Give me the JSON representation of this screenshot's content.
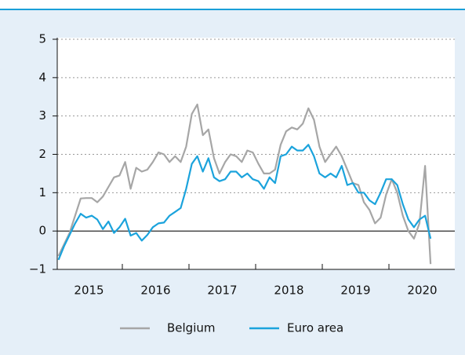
{
  "chart_data": {
    "type": "line",
    "x": [
      2015.042,
      2015.125,
      2015.208,
      2015.292,
      2015.375,
      2015.458,
      2015.542,
      2015.625,
      2015.708,
      2015.792,
      2015.875,
      2015.958,
      2016.042,
      2016.125,
      2016.208,
      2016.292,
      2016.375,
      2016.458,
      2016.542,
      2016.625,
      2016.708,
      2016.792,
      2016.875,
      2016.958,
      2017.042,
      2017.125,
      2017.208,
      2017.292,
      2017.375,
      2017.458,
      2017.542,
      2017.625,
      2017.708,
      2017.792,
      2017.875,
      2017.958,
      2018.042,
      2018.125,
      2018.208,
      2018.292,
      2018.375,
      2018.458,
      2018.542,
      2018.625,
      2018.708,
      2018.792,
      2018.875,
      2018.958,
      2019.042,
      2019.125,
      2019.208,
      2019.292,
      2019.375,
      2019.458,
      2019.542,
      2019.625,
      2019.708,
      2019.792,
      2019.875,
      2019.958,
      2020.042,
      2020.125,
      2020.208,
      2020.292,
      2020.375,
      2020.458,
      2020.542,
      2020.625
    ],
    "series": [
      {
        "name": "Belgium",
        "color": "#a6a6a6",
        "values": [
          -0.65,
          -0.35,
          -0.05,
          0.4,
          0.85,
          0.86,
          0.86,
          0.75,
          0.9,
          1.15,
          1.4,
          1.45,
          1.8,
          1.1,
          1.65,
          1.55,
          1.6,
          1.8,
          2.05,
          2.0,
          1.8,
          1.95,
          1.8,
          2.2,
          3.05,
          3.3,
          2.5,
          2.65,
          1.9,
          1.5,
          1.8,
          2.0,
          1.95,
          1.8,
          2.1,
          2.05,
          1.75,
          1.5,
          1.5,
          1.6,
          2.25,
          2.6,
          2.7,
          2.65,
          2.8,
          3.2,
          2.9,
          2.2,
          1.8,
          2.0,
          2.2,
          1.95,
          1.6,
          1.25,
          1.2,
          0.75,
          0.55,
          0.2,
          0.35,
          0.95,
          1.35,
          1.0,
          0.4,
          0.0,
          -0.2,
          0.2,
          1.7,
          -0.86
        ]
      },
      {
        "name": "Euro area",
        "color": "#1ba3dc",
        "values": [
          -0.75,
          -0.4,
          -0.1,
          0.2,
          0.45,
          0.35,
          0.4,
          0.3,
          0.05,
          0.25,
          -0.05,
          0.1,
          0.32,
          -0.12,
          -0.05,
          -0.25,
          -0.1,
          0.1,
          0.2,
          0.22,
          0.4,
          0.5,
          0.6,
          1.1,
          1.75,
          1.95,
          1.55,
          1.9,
          1.4,
          1.3,
          1.35,
          1.55,
          1.55,
          1.4,
          1.5,
          1.35,
          1.3,
          1.1,
          1.4,
          1.25,
          1.95,
          2.0,
          2.2,
          2.1,
          2.1,
          2.25,
          1.95,
          1.5,
          1.4,
          1.5,
          1.4,
          1.7,
          1.2,
          1.25,
          1.0,
          1.0,
          0.8,
          0.7,
          1.0,
          1.35,
          1.35,
          1.2,
          0.7,
          0.3,
          0.1,
          0.3,
          0.4,
          -0.2
        ]
      }
    ],
    "xlim": [
      2015,
      2021
    ],
    "xticks": [
      2016,
      2017,
      2018,
      2019,
      2020
    ],
    "x_labels": [
      {
        "value": 2015.5,
        "label": "2015"
      },
      {
        "value": 2016.5,
        "label": "2016"
      },
      {
        "value": 2017.5,
        "label": "2017"
      },
      {
        "value": 2018.5,
        "label": "2018"
      },
      {
        "value": 2019.5,
        "label": "2019"
      },
      {
        "value": 2020.5,
        "label": "2020"
      }
    ],
    "ylim": [
      -1,
      5
    ],
    "yticks": [
      -1,
      0,
      1,
      2,
      3,
      4,
      5
    ],
    "yticks_labels_minus": {
      "value": -1,
      "label": "−1"
    },
    "grid": true,
    "legend": "bottom"
  }
}
